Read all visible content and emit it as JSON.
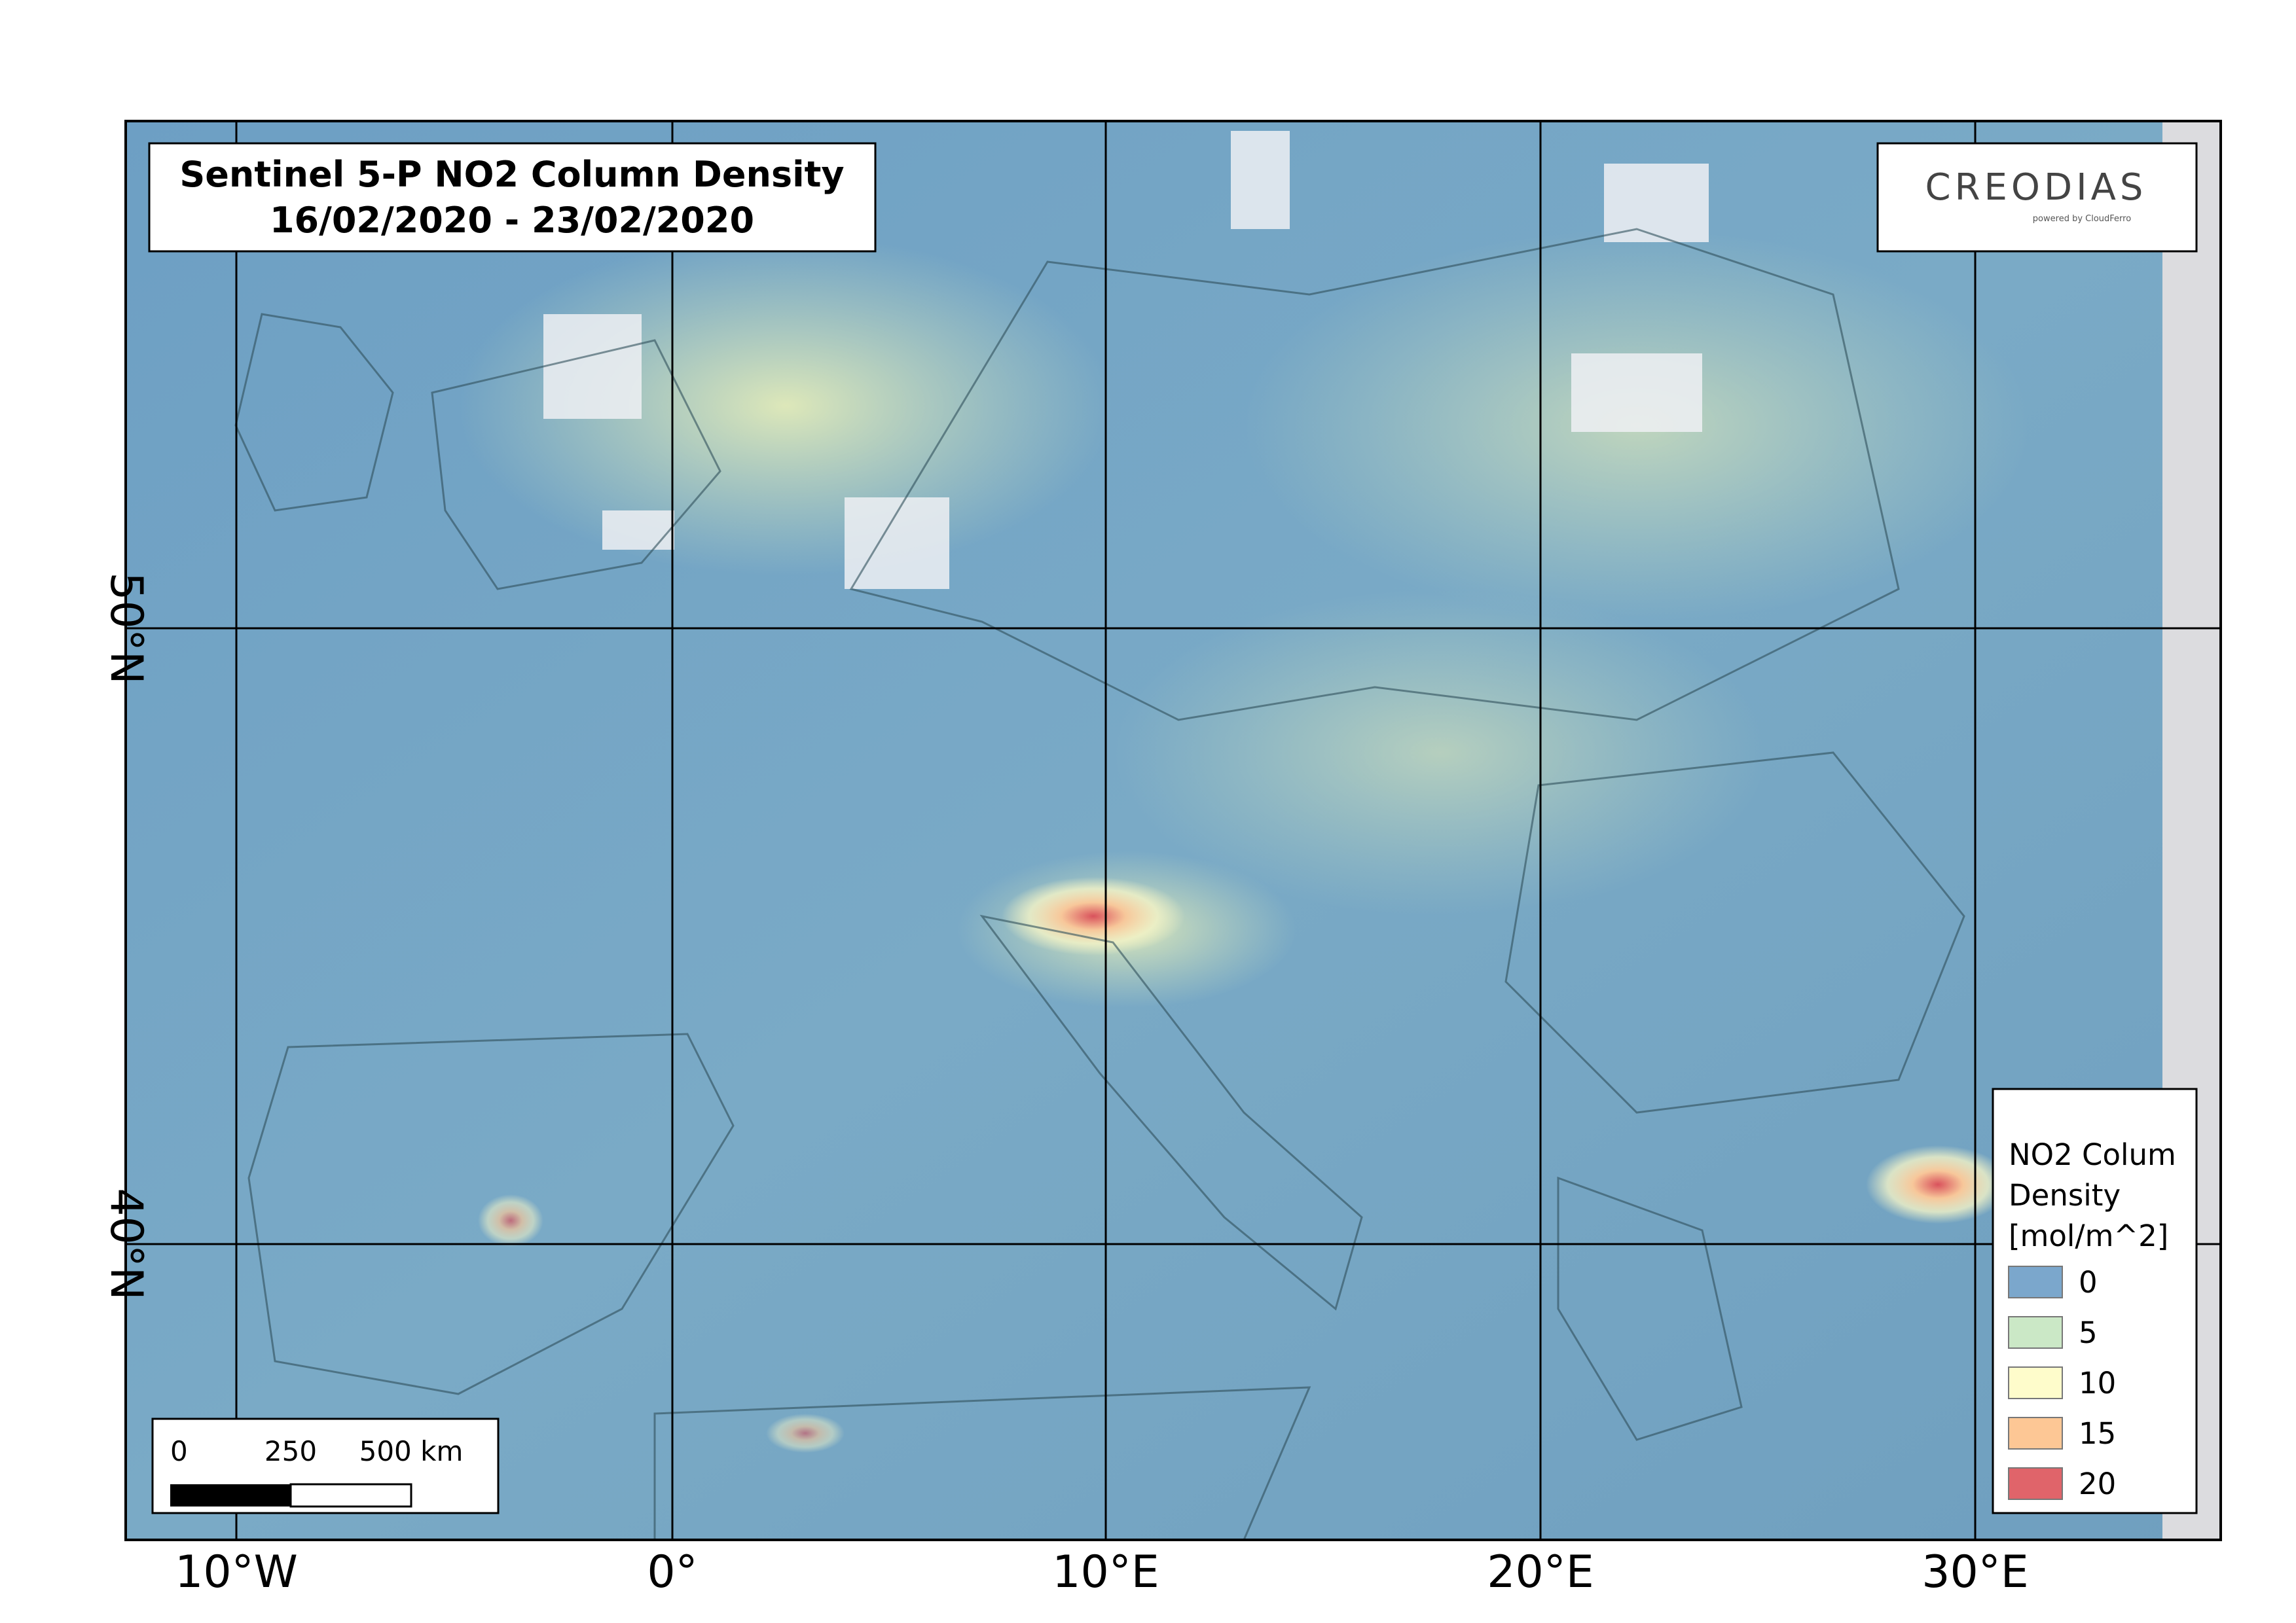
{
  "map": {
    "title": [
      "Sentinel 5-P NO2 Column Density",
      "16/02/2020 - 23/02/2020"
    ],
    "logo": {
      "name": "CREODIAS",
      "tagline": "powered by CloudFerro"
    },
    "lon_labels": [
      "10°W",
      "0°",
      "10°E",
      "20°E",
      "30°E"
    ],
    "lat_labels": [
      "50°N",
      "40°N"
    ],
    "legend": {
      "title": [
        "NO2 Colum",
        "Density",
        "[mol/m^2]"
      ],
      "entries": [
        {
          "label": "0",
          "color": "#7ba7cc"
        },
        {
          "label": "5",
          "color": "#cbe8c6"
        },
        {
          "label": "10",
          "color": "#fefccb"
        },
        {
          "label": "15",
          "color": "#fdc795"
        },
        {
          "label": "20",
          "color": "#e0646a"
        }
      ]
    },
    "scale_bar": [
      "0",
      "250",
      "500 km"
    ]
  }
}
